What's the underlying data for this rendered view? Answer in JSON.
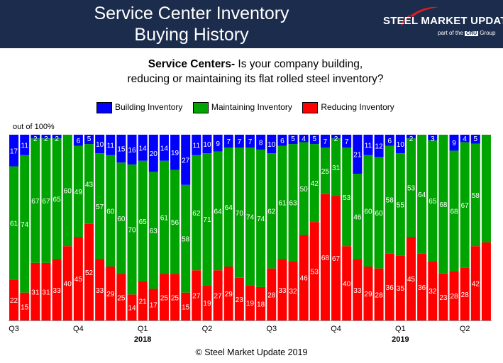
{
  "header": {
    "title_line1": "Service Center Inventory",
    "title_line2": "Buying History",
    "brand_name": "STEEL MARKET UPDATE",
    "brand_sub_prefix": "part of the",
    "brand_sub_logo": "CRU",
    "brand_sub_suffix": "Group"
  },
  "question": {
    "bold": "Service Centers-",
    "line1_rest": " Is your company building,",
    "line2": "reducing or maintaining its flat rolled steel inventory?"
  },
  "copyright": "© Steel Market Update 2019",
  "colors": {
    "header_bg": "#1c2c4c",
    "building": "#0000ff",
    "maintaining": "#00a400",
    "reducing": "#ff0000"
  },
  "chart_data": {
    "type": "bar",
    "stacked": true,
    "title": "Service Centers- Is your company building, reducing or maintaining its flat rolled steel inventory?",
    "ylabel": "out of 100%",
    "xlabel": "",
    "ylim": [
      0,
      100
    ],
    "legend_position": "top",
    "series": [
      {
        "name": "Building Inventory",
        "color": "#0000ff",
        "values": [
          17,
          11,
          2,
          2,
          2,
          0,
          6,
          5,
          10,
          11,
          15,
          16,
          14,
          20,
          14,
          19,
          27,
          11,
          10,
          9,
          7,
          7,
          7,
          8,
          10,
          6,
          5,
          4,
          5,
          7,
          2,
          7,
          21,
          11,
          12,
          6,
          10,
          2,
          0,
          3,
          0,
          9,
          4,
          5,
          0
        ]
      },
      {
        "name": "Maintaining Inventory",
        "color": "#00a400",
        "values": [
          61,
          74,
          67,
          67,
          65,
          60,
          49,
          43,
          57,
          60,
          60,
          70,
          65,
          63,
          61,
          56,
          58,
          62,
          71,
          64,
          64,
          70,
          74,
          74,
          62,
          61,
          63,
          50,
          42,
          25,
          31,
          53,
          46,
          60,
          60,
          58,
          55,
          53,
          64,
          65,
          68,
          68,
          67,
          58,
          58
        ]
      },
      {
        "name": "Reducing Inventory",
        "color": "#ff0000",
        "values": [
          22,
          15,
          31,
          31,
          33,
          40,
          45,
          52,
          33,
          29,
          25,
          14,
          21,
          17,
          25,
          25,
          15,
          27,
          19,
          27,
          29,
          23,
          19,
          18,
          28,
          33,
          32,
          46,
          53,
          68,
          67,
          40,
          33,
          29,
          28,
          36,
          35,
          45,
          36,
          32,
          23,
          28,
          28,
          42,
          42
        ]
      }
    ],
    "bar_labels": {
      "building": [
        "17",
        "11",
        "2",
        "2",
        "2",
        "",
        "6",
        "5",
        "10",
        "11",
        "15",
        "16",
        "14",
        "20",
        "14",
        "19",
        "27",
        "11",
        "10",
        "9",
        "7",
        "7",
        "7",
        "8",
        "10",
        "6",
        "5",
        "4",
        "5",
        "7",
        "2",
        "7",
        "21",
        "11",
        "12",
        "6",
        "10",
        "2",
        "",
        "3",
        "",
        "9",
        "4",
        "5",
        ""
      ],
      "maintaining": [
        "61",
        "74",
        "67",
        "67",
        "65",
        "60",
        "49",
        "43",
        "57",
        "60",
        "60",
        "70",
        "65",
        "63",
        "61",
        "56",
        "58",
        "62",
        "71",
        "64",
        "64",
        "70",
        "74",
        "74",
        "62",
        "61",
        "63",
        "50",
        "42",
        "25",
        "31",
        "53",
        "46",
        "60",
        "60",
        "58",
        "55",
        "53",
        "64",
        "65",
        "68",
        "68",
        "67",
        "58",
        ""
      ],
      "reducing": [
        "22",
        "15",
        "31",
        "31",
        "33",
        "40",
        "45",
        "52",
        "33",
        "29",
        "25",
        "14",
        "21",
        "17",
        "25",
        "25",
        "15",
        "27",
        "19",
        "27",
        "29",
        "23",
        "19",
        "18",
        "28",
        "33",
        "32",
        "46",
        "53",
        "68",
        "67",
        "40",
        "33",
        "29",
        "28",
        "36",
        "35",
        "45",
        "36",
        "32",
        "23",
        "28",
        "28",
        "42",
        ""
      ]
    },
    "x_tick_labels": [
      {
        "index": 0,
        "text": "Q3"
      },
      {
        "index": 6,
        "text": "Q4"
      },
      {
        "index": 12,
        "text": "Q1"
      },
      {
        "index": 18,
        "text": "Q2"
      },
      {
        "index": 24,
        "text": "Q3"
      },
      {
        "index": 30,
        "text": "Q4"
      },
      {
        "index": 36,
        "text": "Q1"
      },
      {
        "index": 42,
        "text": "Q2"
      }
    ],
    "year_labels": [
      {
        "index": 12,
        "text": "2018"
      },
      {
        "index": 36,
        "text": "2019"
      }
    ]
  }
}
